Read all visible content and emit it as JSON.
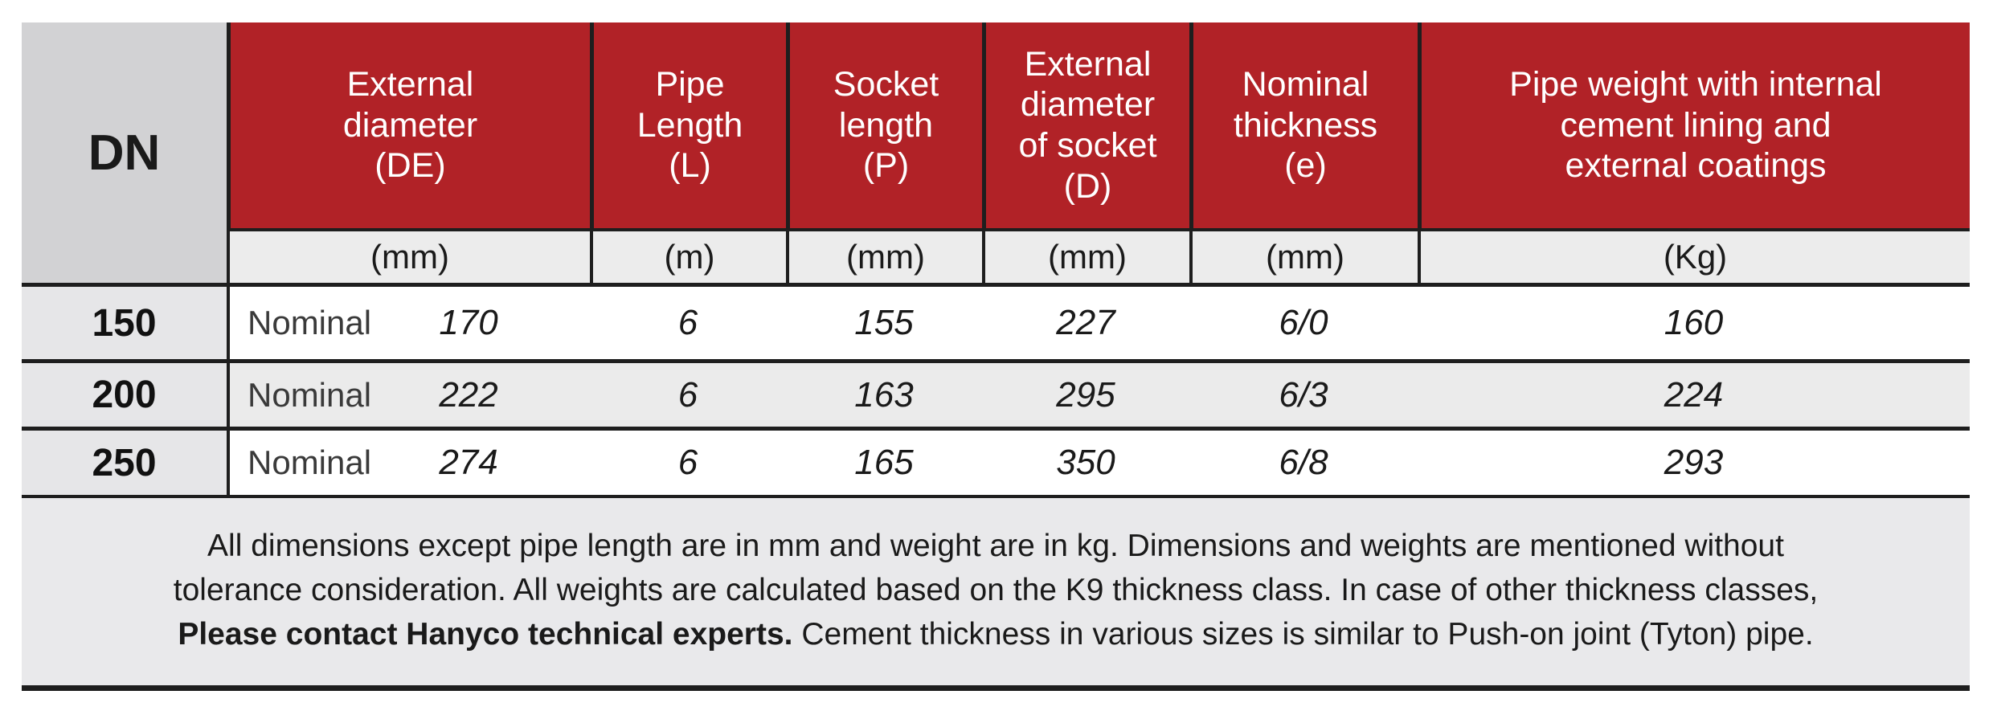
{
  "colors": {
    "header_red": "#B12227",
    "dn_header_gray": "#D2D2D4",
    "dn_column_gray": "#E6E6E8",
    "units_row_gray": "#ECECEC",
    "alt_row_gray": "#EBEBEB",
    "footnote_gray": "#E9E9EB",
    "border_black": "#1E1E1E",
    "header_text": "#FFFFFF",
    "body_text": "#1A1A1A"
  },
  "table": {
    "dn_header": "DN",
    "headers": [
      {
        "label": "External\ndiameter\n(DE)",
        "unit": "(mm)"
      },
      {
        "label": "Pipe\nLength\n(L)",
        "unit": "(m)"
      },
      {
        "label": "Socket\nlength\n(P)",
        "unit": "(mm)"
      },
      {
        "label": "External\ndiameter\nof socket\n(D)",
        "unit": "(mm)"
      },
      {
        "label": "Nominal\nthickness\n(e)",
        "unit": "(mm)"
      },
      {
        "label": "Pipe weight with internal\ncement lining and\nexternal  coatings",
        "unit": "(Kg)"
      }
    ],
    "rows": [
      {
        "dn": "150",
        "de_label": "Nominal",
        "de": "170",
        "l": "6",
        "p": "155",
        "d": "227",
        "e": "6/0",
        "w": "160"
      },
      {
        "dn": "200",
        "de_label": "Nominal",
        "de": "222",
        "l": "6",
        "p": "163",
        "d": "295",
        "e": "6/3",
        "w": "224"
      },
      {
        "dn": "250",
        "de_label": "Nominal",
        "de": "274",
        "l": "6",
        "p": "165",
        "d": "350",
        "e": "6/8",
        "w": "293"
      }
    ]
  },
  "footnote": {
    "line1": "All dimensions except pipe length are in mm and weight are in kg. Dimensions and weights are mentioned without",
    "line2": "tolerance consideration. All weights are calculated based on the K9 thickness class. In case of other thickness classes,",
    "line3_bold": "Please contact Hanyco technical experts.",
    "line3_rest": " Cement thickness in various sizes is similar to Push-on joint (Tyton) pipe."
  }
}
